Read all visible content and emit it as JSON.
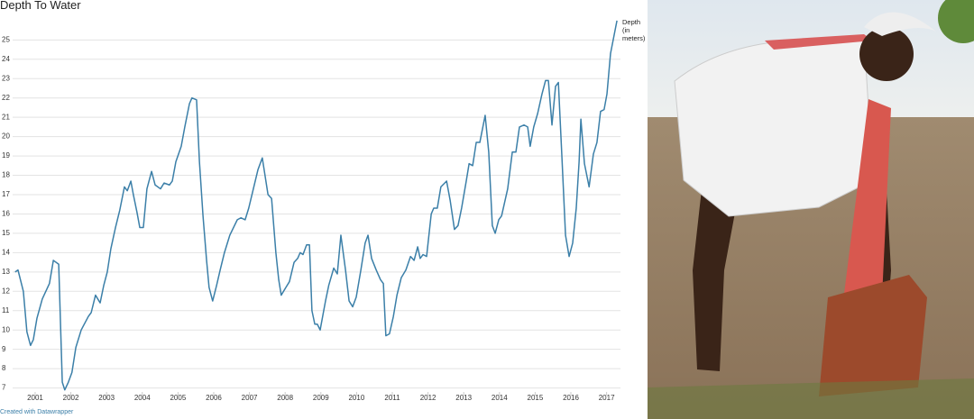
{
  "chart_data": {
    "type": "line",
    "title": "Depth To Water",
    "credit": "Created with Datawrapper",
    "x": [
      2000.44,
      2000.52,
      2000.67,
      2000.77,
      2000.87,
      2000.95,
      2001.05,
      2001.2,
      2001.4,
      2001.51,
      2001.66,
      2001.76,
      2001.83,
      2001.93,
      2002.03,
      2002.14,
      2002.29,
      2002.49,
      2002.57,
      2002.69,
      2002.82,
      2002.92,
      2003.02,
      2003.12,
      2003.25,
      2003.37,
      2003.5,
      2003.58,
      2003.68,
      2003.75,
      2003.85,
      2003.93,
      2004.03,
      2004.13,
      2004.26,
      2004.36,
      2004.51,
      2004.61,
      2004.76,
      2004.84,
      2004.94,
      2005.09,
      2005.19,
      2005.32,
      2005.39,
      2005.52,
      2005.6,
      2005.7,
      2005.8,
      2005.87,
      2005.97,
      2006.08,
      2006.18,
      2006.3,
      2006.45,
      2006.66,
      2006.76,
      2006.88,
      2006.98,
      2007.11,
      2007.24,
      2007.36,
      2007.52,
      2007.62,
      2007.74,
      2007.82,
      2007.89,
      2008.02,
      2008.12,
      2008.25,
      2008.35,
      2008.42,
      2008.5,
      2008.6,
      2008.68,
      2008.75,
      2008.83,
      2008.9,
      2008.98,
      2009.06,
      2009.13,
      2009.22,
      2009.36,
      2009.46,
      2009.56,
      2009.69,
      2009.79,
      2009.89,
      2009.99,
      2010.12,
      2010.24,
      2010.32,
      2010.42,
      2010.55,
      2010.67,
      2010.75,
      2010.82,
      2010.92,
      2011.03,
      2011.13,
      2011.25,
      2011.38,
      2011.51,
      2011.61,
      2011.71,
      2011.78,
      2011.86,
      2011.96,
      2012.09,
      2012.16,
      2012.26,
      2012.36,
      2012.52,
      2012.62,
      2012.74,
      2012.84,
      2012.94,
      2013.07,
      2013.15,
      2013.25,
      2013.35,
      2013.45,
      2013.6,
      2013.7,
      2013.8,
      2013.88,
      2013.98,
      2014.06,
      2014.23,
      2014.36,
      2014.46,
      2014.56,
      2014.69,
      2014.79,
      2014.86,
      2014.96,
      2015.07,
      2015.19,
      2015.29,
      2015.37,
      2015.47,
      2015.57,
      2015.65,
      2015.75,
      2015.85,
      2015.95,
      2016.05,
      2016.15,
      2016.23,
      2016.28,
      2016.38,
      2016.51,
      2016.63,
      2016.73,
      2016.83,
      2016.93,
      2017.01,
      2017.11,
      2017.29
    ],
    "series": [
      {
        "name": "Depth (in meters)",
        "color": "#3b7fa8",
        "values": [
          13.0,
          13.1,
          12.0,
          9.9,
          9.2,
          9.5,
          10.6,
          11.6,
          12.4,
          13.6,
          13.4,
          7.3,
          6.9,
          7.3,
          7.8,
          9.1,
          10.0,
          10.7,
          10.9,
          11.8,
          11.4,
          12.3,
          13.0,
          14.2,
          15.3,
          16.2,
          17.4,
          17.2,
          17.7,
          17.0,
          16.1,
          15.3,
          15.3,
          17.3,
          18.2,
          17.5,
          17.3,
          17.6,
          17.5,
          17.7,
          18.7,
          19.5,
          20.5,
          21.7,
          22.0,
          21.9,
          18.7,
          15.9,
          13.6,
          12.2,
          11.5,
          12.3,
          13.1,
          14.0,
          14.9,
          15.7,
          15.8,
          15.7,
          16.3,
          17.3,
          18.3,
          18.9,
          17.0,
          16.8,
          14.0,
          12.6,
          11.8,
          12.2,
          12.5,
          13.5,
          13.7,
          14.0,
          13.9,
          14.4,
          14.4,
          11.0,
          10.3,
          10.3,
          10.0,
          10.8,
          11.5,
          12.3,
          13.2,
          12.9,
          14.9,
          13.1,
          11.5,
          11.2,
          11.7,
          13.1,
          14.5,
          14.9,
          13.7,
          13.1,
          12.6,
          12.4,
          9.7,
          9.8,
          10.7,
          11.8,
          12.7,
          13.1,
          13.8,
          13.6,
          14.3,
          13.7,
          13.9,
          13.8,
          16.0,
          16.3,
          16.3,
          17.4,
          17.7,
          16.7,
          15.2,
          15.4,
          16.3,
          17.7,
          18.6,
          18.5,
          19.7,
          19.7,
          21.1,
          19.2,
          15.4,
          15.0,
          15.7,
          15.9,
          17.3,
          19.2,
          19.2,
          20.5,
          20.6,
          20.5,
          19.5,
          20.5,
          21.2,
          22.2,
          22.9,
          22.9,
          20.6,
          22.6,
          22.8,
          18.9,
          14.9,
          13.8,
          14.5,
          16.3,
          18.7,
          20.9,
          18.6,
          17.4,
          19.1,
          19.7,
          21.3,
          21.4,
          22.2,
          24.3,
          26.0
        ]
      }
    ],
    "xlim": [
      2000.4,
      2017.3
    ],
    "xticks": [
      2001,
      2002,
      2003,
      2004,
      2005,
      2006,
      2007,
      2008,
      2009,
      2010,
      2011,
      2012,
      2013,
      2014,
      2015,
      2016,
      2017
    ],
    "ylim": [
      6.7,
      26.6
    ],
    "yticks": [
      7,
      8,
      9,
      10,
      11,
      12,
      13,
      14,
      15,
      16,
      17,
      18,
      19,
      20,
      21,
      22,
      23,
      24,
      25
    ],
    "grid": true
  }
}
